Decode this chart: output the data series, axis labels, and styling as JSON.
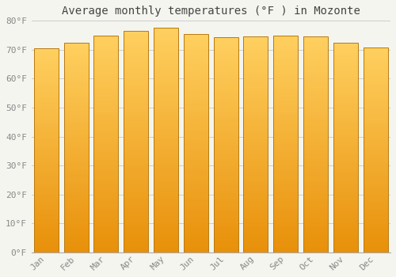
{
  "title": "Average monthly temperatures (°F ) in Mozonte",
  "months": [
    "Jan",
    "Feb",
    "Mar",
    "Apr",
    "May",
    "Jun",
    "Jul",
    "Aug",
    "Sep",
    "Oct",
    "Nov",
    "Dec"
  ],
  "values": [
    70.5,
    72.3,
    75.0,
    76.5,
    77.5,
    75.5,
    74.3,
    74.5,
    75.0,
    74.5,
    72.5,
    70.7
  ],
  "ylim": [
    0,
    80
  ],
  "yticks": [
    0,
    10,
    20,
    30,
    40,
    50,
    60,
    70,
    80
  ],
  "bar_color_bottom": "#E8900A",
  "bar_color_top": "#FFD060",
  "bar_edge_color": "#B87A10",
  "background_color": "#F5F5F0",
  "plot_bg_color": "#F5F5F0",
  "grid_color": "#CCCCCC",
  "title_fontsize": 10,
  "tick_fontsize": 8,
  "tick_color": "#888888",
  "font_family": "monospace"
}
